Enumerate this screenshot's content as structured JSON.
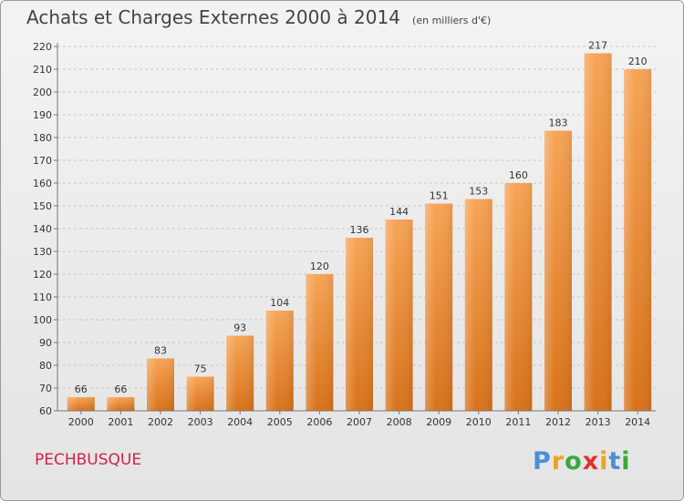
{
  "chart_data": {
    "type": "bar",
    "title": "Achats et Charges Externes 2000 à 2014",
    "subtitle": "(en milliers d'€)",
    "categories": [
      "2000",
      "2001",
      "2002",
      "2003",
      "2004",
      "2005",
      "2006",
      "2007",
      "2008",
      "2009",
      "2010",
      "2011",
      "2012",
      "2013",
      "2014"
    ],
    "values": [
      66,
      66,
      83,
      75,
      93,
      104,
      120,
      136,
      144,
      151,
      153,
      160,
      183,
      217,
      210
    ],
    "ylim": [
      60,
      220
    ],
    "yticks": [
      60,
      70,
      80,
      90,
      100,
      110,
      120,
      130,
      140,
      150,
      160,
      170,
      180,
      190,
      200,
      210,
      220
    ],
    "grid": "horizontal-dashed",
    "xlabel": "",
    "ylabel": "",
    "bar_color": "#f0953a"
  },
  "footer": {
    "commune": "PECHBUSQUE",
    "logo": [
      "P",
      "r",
      "o",
      "x",
      "i",
      "t",
      "i"
    ],
    "logo_colors": [
      "#4a8fd6",
      "#f0a020",
      "#3aa83a",
      "#e03030",
      "#f0a020",
      "#4a8fd6",
      "#3aa83a"
    ]
  }
}
